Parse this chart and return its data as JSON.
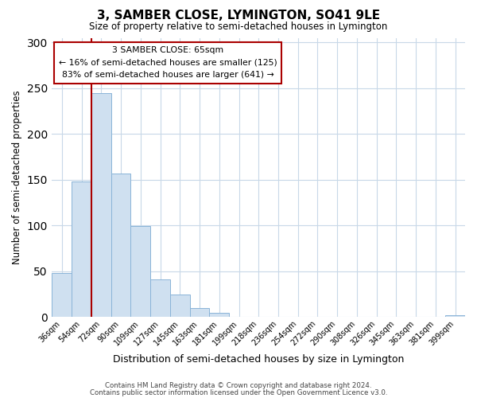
{
  "title": "3, SAMBER CLOSE, LYMINGTON, SO41 9LE",
  "subtitle": "Size of property relative to semi-detached houses in Lymington",
  "xlabel": "Distribution of semi-detached houses by size in Lymington",
  "ylabel": "Number of semi-detached properties",
  "bins": [
    "36sqm",
    "54sqm",
    "72sqm",
    "90sqm",
    "109sqm",
    "127sqm",
    "145sqm",
    "163sqm",
    "181sqm",
    "199sqm",
    "218sqm",
    "236sqm",
    "254sqm",
    "272sqm",
    "290sqm",
    "308sqm",
    "326sqm",
    "345sqm",
    "363sqm",
    "381sqm",
    "399sqm"
  ],
  "values": [
    48,
    148,
    245,
    157,
    99,
    41,
    25,
    10,
    5,
    0,
    0,
    0,
    0,
    0,
    0,
    0,
    0,
    0,
    0,
    0,
    2
  ],
  "bar_color": "#cfe0f0",
  "bar_edge_color": "#8ab4d8",
  "vline_color": "#aa0000",
  "ylim": [
    0,
    305
  ],
  "yticks": [
    0,
    50,
    100,
    150,
    200,
    250,
    300
  ],
  "annotation_title": "3 SAMBER CLOSE: 65sqm",
  "annotation_line1": "← 16% of semi-detached houses are smaller (125)",
  "annotation_line2": "83% of semi-detached houses are larger (641) →",
  "annotation_box_color": "#ffffff",
  "annotation_box_edge": "#aa0000",
  "footer1": "Contains HM Land Registry data © Crown copyright and database right 2024.",
  "footer2": "Contains public sector information licensed under the Open Government Licence v3.0.",
  "background_color": "#ffffff",
  "grid_color": "#c8d8e8"
}
